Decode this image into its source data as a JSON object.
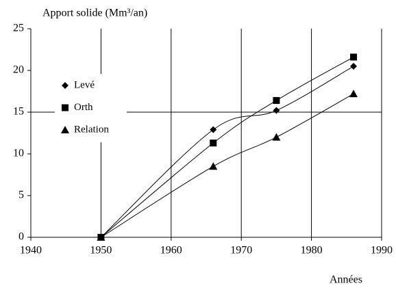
{
  "chart_data": {
    "type": "scatter",
    "title": "Apport solide (Mm³/an)",
    "x_label": "Années",
    "xlim": [
      1940,
      1990
    ],
    "xticks": [
      1940,
      1950,
      1960,
      1970,
      1980,
      1990
    ],
    "ylim": [
      0,
      25
    ],
    "yticks": [
      0,
      5,
      10,
      15,
      20,
      25
    ],
    "x": [
      1950,
      1966,
      1975,
      1986
    ],
    "series": [
      {
        "name": "Levé",
        "color": "#000000",
        "marker": "diamond",
        "values": [
          0,
          12.9,
          15.2,
          20.5
        ]
      },
      {
        "name": "Orth",
        "color": "#000000",
        "marker": "square",
        "values": [
          0,
          11.3,
          16.4,
          21.6
        ]
      },
      {
        "name": "Relation",
        "color": "#000000",
        "marker": "triangle",
        "values": [
          0,
          8.5,
          12,
          17.2
        ]
      }
    ]
  }
}
